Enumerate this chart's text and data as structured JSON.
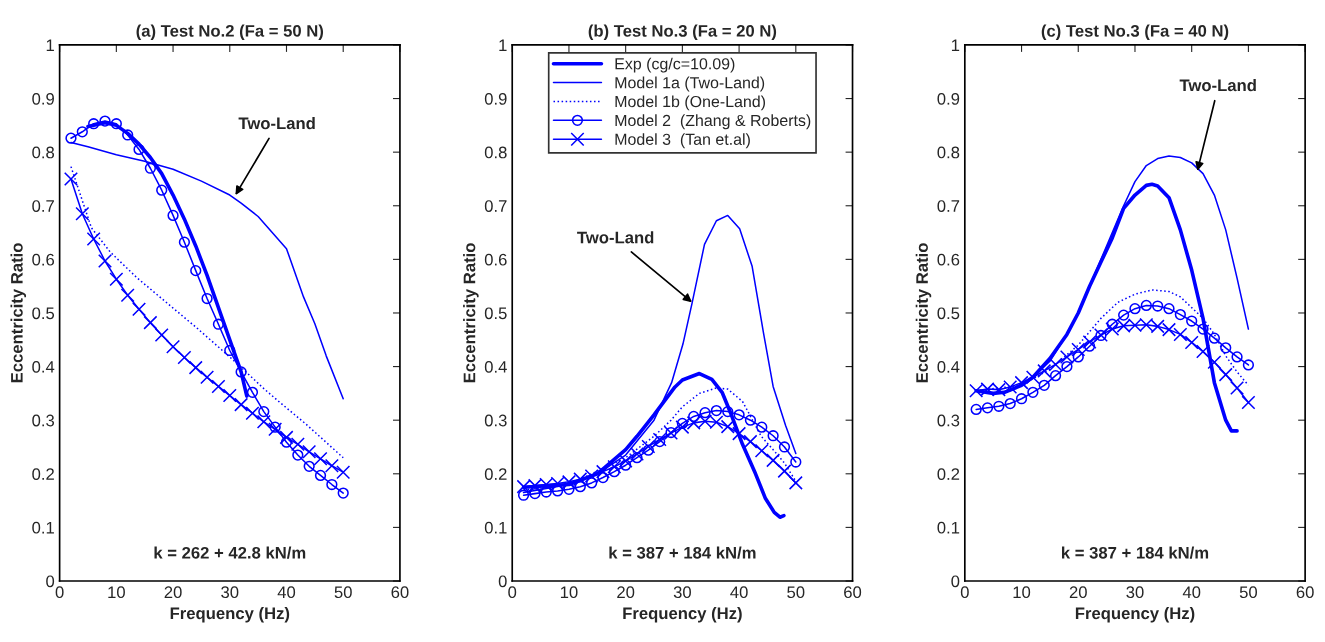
{
  "chart_data": [
    {
      "type": "line",
      "title": "(a) Test No.2 (Fa = 50 N)",
      "xlabel": "Frequency (Hz)",
      "ylabel": "Eccentricity Ratio",
      "xlim": [
        0,
        60
      ],
      "xticks": [
        0,
        10,
        20,
        30,
        40,
        50,
        60
      ],
      "ylim": [
        0,
        1
      ],
      "yticks": [
        0,
        0.1,
        0.2,
        0.3,
        0.4,
        0.5,
        0.6,
        0.7,
        0.8,
        0.9,
        1
      ],
      "grid": false,
      "legend": false,
      "annotations": [
        {
          "text": "Two-Land",
          "x": 31,
          "y": 0.72
        },
        "k = 262 + 42.8 kN/m"
      ],
      "series": [
        {
          "color": "#0000ff",
          "line_style": "solid",
          "marker": "none",
          "x": [
            5,
            8,
            10,
            12,
            14,
            16,
            18,
            20,
            22,
            24,
            26,
            28,
            30,
            32,
            33
          ],
          "values": [
            0.848,
            0.855,
            0.85,
            0.835,
            0.815,
            0.79,
            0.76,
            0.72,
            0.675,
            0.625,
            0.57,
            0.51,
            0.45,
            0.39,
            0.345
          ]
        },
        {
          "color": "#0000ff",
          "line_style": "solid",
          "marker": "none",
          "x": [
            2,
            5,
            10,
            15,
            20,
            25,
            30,
            32,
            35,
            40,
            43,
            45,
            47,
            50
          ],
          "values": [
            0.818,
            0.81,
            0.795,
            0.783,
            0.768,
            0.746,
            0.72,
            0.705,
            0.68,
            0.62,
            0.53,
            0.48,
            0.42,
            0.34
          ]
        },
        {
          "color": "#0000ff",
          "line_style": "dotted",
          "marker": "none",
          "x": [
            2,
            5.6,
            8.9,
            13.6,
            19.9,
            24.2,
            30.1,
            36.1,
            38.4,
            43.4,
            50
          ],
          "values": [
            0.773,
            0.659,
            0.614,
            0.566,
            0.51,
            0.472,
            0.417,
            0.358,
            0.337,
            0.293,
            0.23
          ]
        },
        {
          "color": "#0000ff",
          "line_style": "solid",
          "marker": "circle",
          "x": [
            2,
            4,
            6,
            8,
            10,
            12,
            14,
            16,
            18,
            20,
            22,
            24,
            26,
            28,
            30,
            32,
            34,
            36,
            38,
            40,
            42,
            44,
            46,
            48,
            50
          ],
          "values": [
            0.826,
            0.838,
            0.853,
            0.858,
            0.853,
            0.832,
            0.805,
            0.77,
            0.729,
            0.682,
            0.632,
            0.579,
            0.527,
            0.479,
            0.43,
            0.39,
            0.352,
            0.316,
            0.287,
            0.259,
            0.235,
            0.214,
            0.197,
            0.18,
            0.164
          ]
        },
        {
          "color": "#0000ff",
          "line_style": "solid",
          "marker": "cross",
          "x": [
            2,
            4,
            6,
            8,
            10,
            12,
            14,
            16,
            18,
            20,
            22,
            24,
            26,
            28,
            30,
            32,
            34,
            36,
            38,
            40,
            42,
            44,
            46,
            48,
            50
          ],
          "values": [
            0.75,
            0.685,
            0.638,
            0.597,
            0.563,
            0.533,
            0.507,
            0.482,
            0.459,
            0.437,
            0.417,
            0.398,
            0.38,
            0.363,
            0.346,
            0.329,
            0.313,
            0.297,
            0.283,
            0.268,
            0.255,
            0.241,
            0.228,
            0.215,
            0.203
          ]
        }
      ]
    },
    {
      "type": "line",
      "title": "(b) Test No.3 (Fa = 20 N)",
      "xlabel": "Frequency (Hz)",
      "ylabel": "Eccentricity Ratio",
      "xlim": [
        0,
        60
      ],
      "xticks": [
        0,
        10,
        20,
        30,
        40,
        50,
        60
      ],
      "ylim": [
        0,
        1
      ],
      "yticks": [
        0,
        0.1,
        0.2,
        0.3,
        0.4,
        0.5,
        0.6,
        0.7,
        0.8,
        0.9,
        1
      ],
      "grid": false,
      "legend": "top",
      "annotations": [
        {
          "text": "Two-Land",
          "x": 31.7,
          "y": 0.52
        },
        "k = 387 + 184 kN/m"
      ],
      "series": [
        {
          "name": "Exp (cg/c=10.09)",
          "color": "#0000ff",
          "line_style": "solid",
          "marker": "none",
          "x": [
            2,
            10,
            15,
            20,
            22,
            25,
            28.7,
            30,
            33,
            35.2,
            37,
            38.6,
            40.6,
            42.9,
            44.6,
            46.2,
            47.2,
            47.9
          ],
          "values": [
            0.175,
            0.18,
            0.2,
            0.245,
            0.27,
            0.31,
            0.362,
            0.375,
            0.387,
            0.376,
            0.352,
            0.311,
            0.255,
            0.2,
            0.155,
            0.128,
            0.119,
            0.122
          ]
        },
        {
          "name": "Model 1a (Two-Land)",
          "color": "#0000ff",
          "line_style": "solid",
          "marker": "none",
          "x": [
            2,
            10,
            15,
            20,
            25,
            28.1,
            30.1,
            31.7,
            33.9,
            36,
            38,
            40.1,
            42.3,
            44.3,
            46,
            48.2,
            50
          ],
          "values": [
            0.165,
            0.18,
            0.2,
            0.235,
            0.3,
            0.37,
            0.442,
            0.518,
            0.628,
            0.672,
            0.682,
            0.657,
            0.587,
            0.463,
            0.363,
            0.29,
            0.238
          ]
        },
        {
          "name": "Model 1b (One-Land)",
          "color": "#0000ff",
          "line_style": "dotted",
          "marker": "none",
          "x": [
            2,
            10,
            20,
            25,
            28,
            30,
            33,
            36,
            38,
            40.6,
            43.9,
            46,
            48,
            50
          ],
          "values": [
            0.17,
            0.18,
            0.23,
            0.27,
            0.3,
            0.325,
            0.35,
            0.36,
            0.358,
            0.335,
            0.27,
            0.245,
            0.22,
            0.186
          ]
        },
        {
          "name": "Model 2  (Zhang & Roberts)",
          "color": "#0000ff",
          "line_style": "solid",
          "marker": "circle",
          "x": [
            2,
            4,
            6,
            8,
            10,
            12,
            14,
            16,
            18,
            20,
            22,
            24,
            26,
            28,
            30,
            32,
            34,
            36,
            38,
            40,
            42,
            44,
            46,
            48,
            50
          ],
          "values": [
            0.16,
            0.163,
            0.166,
            0.168,
            0.171,
            0.176,
            0.183,
            0.193,
            0.204,
            0.216,
            0.23,
            0.244,
            0.26,
            0.277,
            0.294,
            0.307,
            0.314,
            0.318,
            0.316,
            0.31,
            0.3,
            0.287,
            0.271,
            0.25,
            0.222
          ]
        },
        {
          "name": "Model 3  (Tan et.al)",
          "color": "#0000ff",
          "line_style": "solid",
          "marker": "cross",
          "x": [
            2,
            4,
            6,
            8,
            10,
            12,
            14,
            16,
            18,
            20,
            22,
            24,
            26,
            28,
            30,
            32,
            34,
            36,
            38,
            40,
            42,
            44,
            46,
            48,
            50
          ],
          "values": [
            0.176,
            0.178,
            0.18,
            0.182,
            0.185,
            0.19,
            0.196,
            0.204,
            0.213,
            0.224,
            0.237,
            0.251,
            0.264,
            0.276,
            0.287,
            0.295,
            0.298,
            0.296,
            0.288,
            0.275,
            0.26,
            0.243,
            0.225,
            0.205,
            0.183
          ]
        }
      ]
    },
    {
      "type": "line",
      "title": "(c) Test No.3 (Fa = 40 N)",
      "xlabel": "Frequency (Hz)",
      "ylabel": "Eccentricity Ratio",
      "xlim": [
        0,
        60
      ],
      "xticks": [
        0,
        10,
        20,
        30,
        40,
        50,
        60
      ],
      "ylim": [
        0,
        1
      ],
      "yticks": [
        0,
        0.1,
        0.2,
        0.3,
        0.4,
        0.5,
        0.6,
        0.7,
        0.8,
        0.9,
        1
      ],
      "grid": false,
      "legend": false,
      "annotations": [
        {
          "text": "Two-Land",
          "x": 41,
          "y": 0.765
        },
        "k = 387 + 184 kN/m"
      ],
      "series": [
        {
          "color": "#0000ff",
          "line_style": "solid",
          "marker": "none",
          "x": [
            2,
            5,
            7,
            10,
            12,
            15,
            18,
            20,
            22,
            24,
            26,
            28,
            30,
            32,
            33,
            34,
            36,
            38,
            40,
            42,
            44,
            46,
            47,
            48
          ],
          "values": [
            0.355,
            0.35,
            0.352,
            0.365,
            0.38,
            0.415,
            0.46,
            0.5,
            0.55,
            0.595,
            0.64,
            0.695,
            0.72,
            0.738,
            0.74,
            0.737,
            0.715,
            0.655,
            0.58,
            0.49,
            0.37,
            0.3,
            0.28,
            0.28
          ]
        },
        {
          "color": "#0000ff",
          "line_style": "solid",
          "marker": "none",
          "x": [
            2,
            5,
            8,
            10,
            12,
            15,
            18,
            20,
            22,
            24,
            26,
            28,
            30,
            32,
            34,
            36,
            38,
            40,
            42,
            44,
            46,
            48,
            50
          ],
          "values": [
            0.355,
            0.35,
            0.355,
            0.365,
            0.38,
            0.41,
            0.46,
            0.5,
            0.55,
            0.6,
            0.65,
            0.7,
            0.745,
            0.775,
            0.788,
            0.793,
            0.79,
            0.78,
            0.76,
            0.72,
            0.655,
            0.565,
            0.47
          ]
        },
        {
          "color": "#0000ff",
          "line_style": "dotted",
          "marker": "none",
          "x": [
            2,
            10,
            15,
            20,
            24,
            27,
            30,
            33,
            36,
            38,
            40,
            42,
            44,
            46,
            48,
            50
          ],
          "values": [
            0.355,
            0.365,
            0.395,
            0.44,
            0.49,
            0.52,
            0.535,
            0.543,
            0.54,
            0.53,
            0.51,
            0.49,
            0.46,
            0.42,
            0.39,
            0.365
          ]
        },
        {
          "color": "#0000ff",
          "line_style": "solid",
          "marker": "circle",
          "x": [
            2,
            4,
            6,
            8,
            10,
            12,
            14,
            16,
            18,
            20,
            22,
            24,
            26,
            28,
            30,
            32,
            34,
            36,
            38,
            40,
            42,
            44,
            46,
            48,
            50
          ],
          "values": [
            0.32,
            0.323,
            0.326,
            0.331,
            0.34,
            0.352,
            0.365,
            0.383,
            0.4,
            0.418,
            0.438,
            0.458,
            0.479,
            0.496,
            0.508,
            0.514,
            0.513,
            0.508,
            0.497,
            0.485,
            0.47,
            0.453,
            0.435,
            0.418,
            0.403
          ]
        },
        {
          "color": "#0000ff",
          "line_style": "solid",
          "marker": "cross",
          "x": [
            2,
            4,
            6,
            8,
            10,
            12,
            14,
            16,
            18,
            20,
            22,
            24,
            26,
            28,
            30,
            32,
            34,
            36,
            38,
            40,
            42,
            44,
            46,
            48,
            50
          ],
          "values": [
            0.355,
            0.358,
            0.357,
            0.362,
            0.37,
            0.38,
            0.392,
            0.404,
            0.418,
            0.432,
            0.446,
            0.459,
            0.47,
            0.476,
            0.477,
            0.478,
            0.475,
            0.469,
            0.46,
            0.445,
            0.428,
            0.408,
            0.385,
            0.36,
            0.333
          ]
        }
      ]
    }
  ]
}
